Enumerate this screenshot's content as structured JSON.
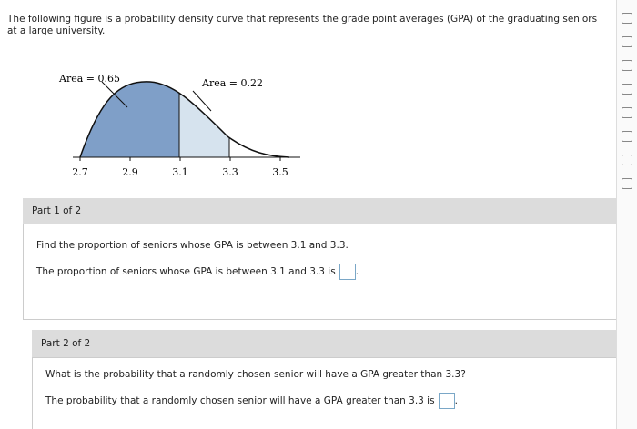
{
  "question": {
    "text": "The following figure is a probability density curve that represents the grade point averages (GPA) of the graduating seniors at a large university."
  },
  "figure": {
    "area_labels": [
      "Area = 0.65",
      "Area = 0.22"
    ],
    "xticks": [
      2.7,
      2.9,
      3.1,
      3.3,
      3.5
    ]
  },
  "parts": [
    {
      "header": "Part 1 of 2",
      "prompt": "Find the proportion of seniors whose GPA is between 3.1 and 3.3.",
      "answer_text": "The proportion of seniors whose GPA is between 3.1 and 3.3 is",
      "answer_suffix": "."
    },
    {
      "header": "Part 2 of 2",
      "prompt": "What is the probability that a randomly chosen senior will have a GPA greater than 3.3?",
      "answer_text": "The probability that a randomly chosen senior will have a GPA greater than 3.3 is",
      "answer_suffix": "."
    }
  ]
}
